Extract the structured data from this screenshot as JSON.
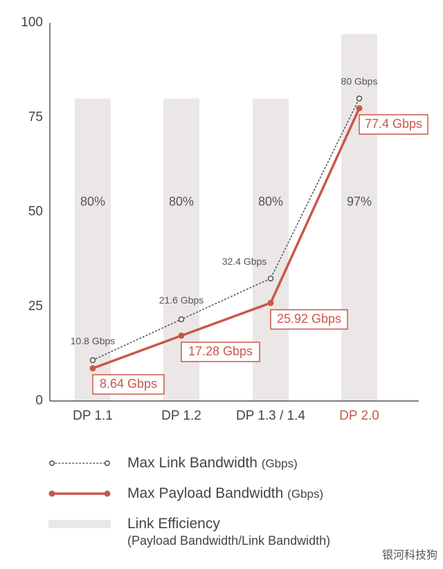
{
  "chart_data": {
    "type": "bar",
    "categories": [
      "DP 1.1",
      "DP 1.2",
      "DP 1.3 / 1.4",
      "DP 2.0"
    ],
    "highlight_category": "DP 2.0",
    "ylim": [
      0,
      100
    ],
    "yticks": [
      "0",
      "25",
      "50",
      "75",
      "100"
    ],
    "bars": {
      "name": "Link Efficiency",
      "heights": [
        80,
        80,
        80,
        97
      ],
      "labels": [
        "80%",
        "80%",
        "80%",
        "97%"
      ],
      "color": "#ebe7e6"
    },
    "series": [
      {
        "name": "Max Link Bandwidth",
        "style": "dotted",
        "values": [
          10.8,
          21.6,
          32.4,
          80
        ],
        "labels": [
          "10.8 Gbps",
          "21.6 Gbps",
          "32.4 Gbps",
          "80 Gbps"
        ],
        "color": "#555555"
      },
      {
        "name": "Max Payload Bandwidth",
        "style": "solid",
        "values": [
          8.64,
          17.28,
          25.92,
          77.4
        ],
        "labels": [
          "8.64 Gbps",
          "17.28 Gbps",
          "25.92 Gbps",
          "77.4 Gbps"
        ],
        "color": "#c9574b"
      }
    ]
  },
  "legend": {
    "link": {
      "label": "Max Link Bandwidth",
      "unit": "(Gbps)"
    },
    "payload": {
      "label": "Max Payload Bandwidth",
      "unit": "(Gbps)"
    },
    "efficiency": {
      "label": "Link Efficiency",
      "sub": "(Payload Bandwidth/Link Bandwidth)"
    }
  },
  "watermark": "银河科技狗"
}
